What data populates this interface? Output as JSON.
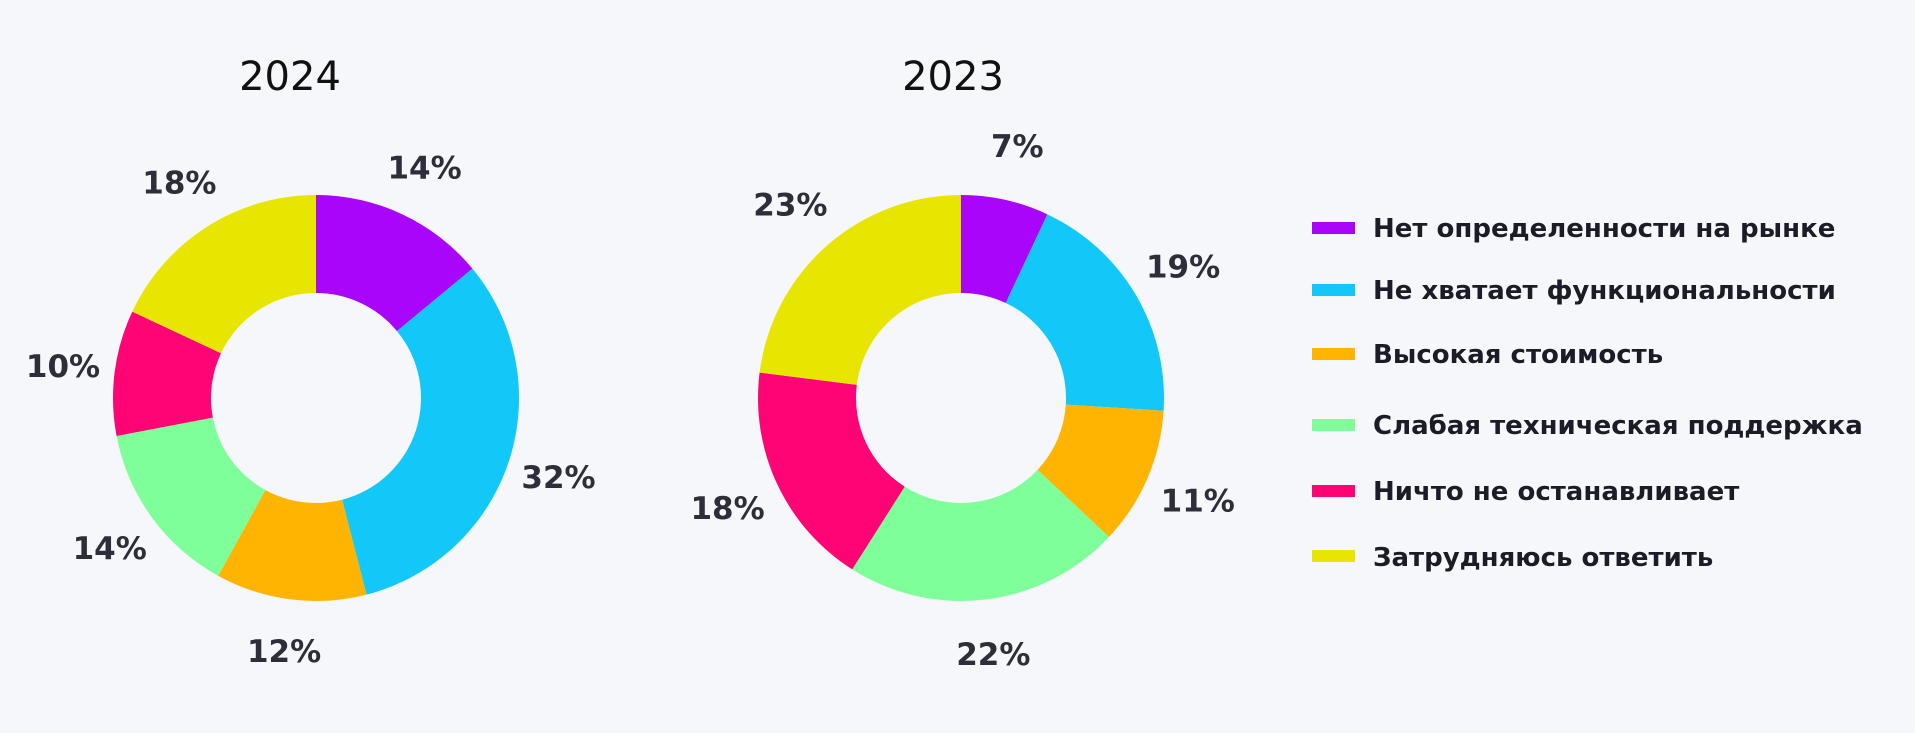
{
  "chart_data": {
    "type": "pie",
    "donut": true,
    "legend_position": "right",
    "categories": [
      "Нет определенности на рынке",
      "Не хватает функциональности",
      "Высокая стоимость",
      "Слабая техническая поддержка",
      "Ничто не останавливает",
      "Затрудняюсь ответить"
    ],
    "colors": [
      "#a905fb",
      "#12c8f8",
      "#feb400",
      "#7eff9a",
      "#ff0474",
      "#e8e600"
    ],
    "charts": [
      {
        "title": "2024",
        "values": [
          14,
          32,
          12,
          14,
          10,
          18
        ],
        "labels": [
          "14%",
          "32%",
          "12%",
          "14%",
          "10%",
          "18%"
        ]
      },
      {
        "title": "2023",
        "values": [
          7,
          19,
          11,
          22,
          18,
          23
        ],
        "labels": [
          "7%",
          "19%",
          "11%",
          "22%",
          "18%",
          "23%"
        ]
      }
    ]
  }
}
